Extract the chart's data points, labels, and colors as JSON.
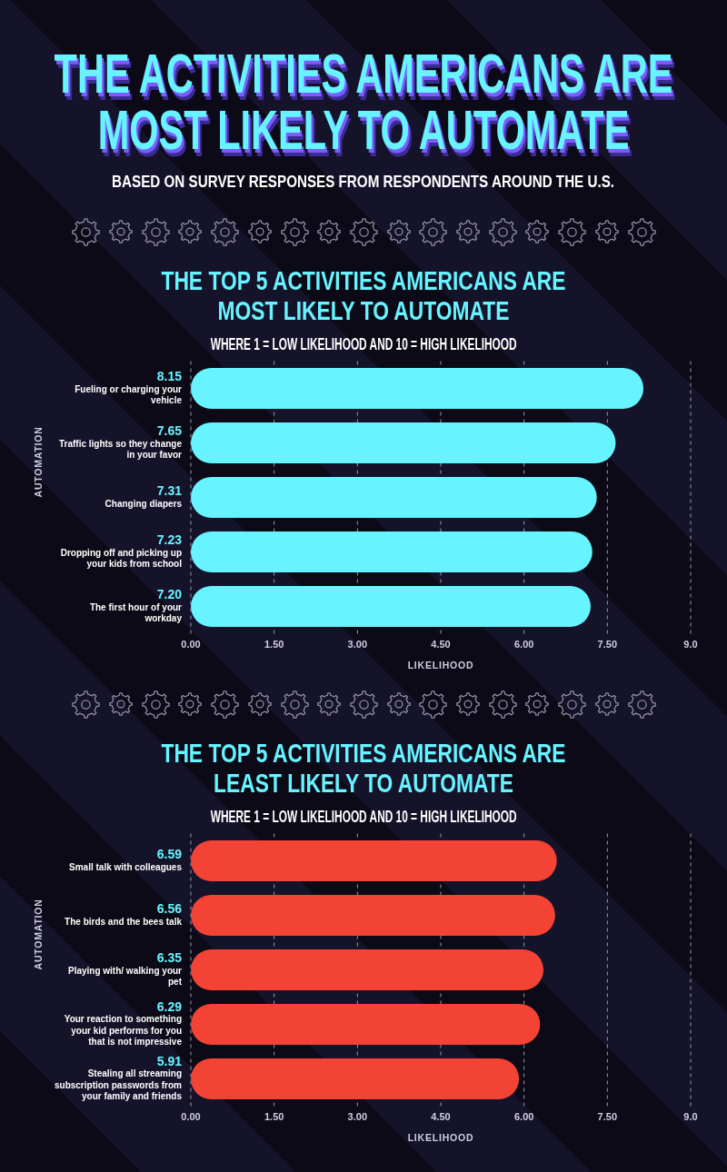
{
  "chart_data": [
    {
      "type": "other",
      "title": "THE ACTIVITIES AMERICANS ARE MOST LIKELY TO AUTOMATE",
      "subtitle": "BASED ON SURVEY RESPONSES FROM RESPONDENTS AROUND THE U.S."
    },
    {
      "type": "bar",
      "orientation": "horizontal",
      "title": "THE TOP 5 ACTIVITIES AMERICANS ARE MOST LIKELY TO AUTOMATE",
      "subtitle": "WHERE 1 = LOW LIKELIHOOD AND 10 = HIGH LIKELIHOOD",
      "xlabel": "LIKELIHOOD",
      "ylabel": "AUTOMATION",
      "categories": [
        "Fueling or charging your vehicle",
        "Traffic lights so they change in your favor",
        "Changing diapers",
        "Dropping off and picking up your kids from school",
        "The first hour of your workday"
      ],
      "values": [
        8.15,
        7.65,
        7.31,
        7.23,
        7.2
      ],
      "value_labels": [
        "8.15",
        "7.65",
        "7.31",
        "7.23",
        "7.20"
      ],
      "color": "#67f3ff",
      "xlim": [
        0,
        9
      ],
      "xticks": [
        {
          "value": 0,
          "label": "0.00"
        },
        {
          "value": 1.5,
          "label": "1.50"
        },
        {
          "value": 3,
          "label": "3.00"
        },
        {
          "value": 4.5,
          "label": "4.50"
        },
        {
          "value": 6,
          "label": "6.00"
        },
        {
          "value": 7.5,
          "label": "7.50"
        },
        {
          "value": 9,
          "label": "9.0"
        }
      ],
      "grid": "x"
    },
    {
      "type": "bar",
      "orientation": "horizontal",
      "title": "THE TOP 5 ACTIVITIES AMERICANS ARE LEAST LIKELY TO AUTOMATE",
      "subtitle": "WHERE 1 = LOW LIKELIHOOD AND 10 = HIGH LIKELIHOOD",
      "xlabel": "LIKELIHOOD",
      "ylabel": "AUTOMATION",
      "categories": [
        "Small talk with colleagues",
        "The birds and the bees talk",
        "Playing with/ walking your pet",
        "Your reaction to something your kid performs for you that is not impressive",
        "Stealing all streaming subscription passwords from your family and friends"
      ],
      "values": [
        6.59,
        6.56,
        6.35,
        6.29,
        5.91
      ],
      "value_labels": [
        "6.59",
        "6.56",
        "6.35",
        "6.29",
        "5.91"
      ],
      "color": "#f24335",
      "xlim": [
        0,
        9
      ],
      "xticks": [
        {
          "value": 0,
          "label": "0.00"
        },
        {
          "value": 1.5,
          "label": "1.50"
        },
        {
          "value": 3,
          "label": "3.00"
        },
        {
          "value": 4.5,
          "label": "4.50"
        },
        {
          "value": 6,
          "label": "6.00"
        },
        {
          "value": 7.5,
          "label": "7.50"
        },
        {
          "value": 9,
          "label": "9.0"
        }
      ],
      "grid": "x"
    }
  ]
}
